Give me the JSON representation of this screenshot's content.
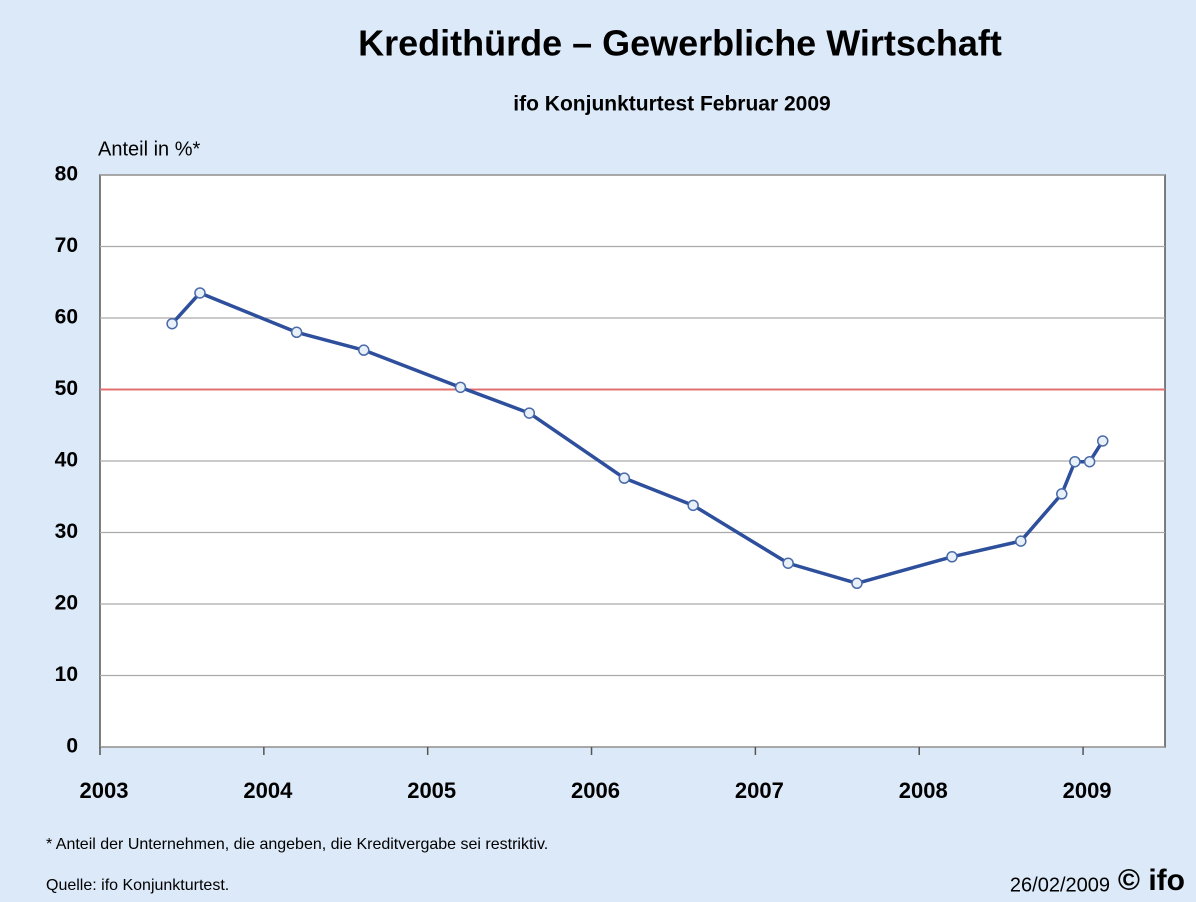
{
  "chart_data": {
    "type": "line",
    "title": "Kredithürde – Gewerbliche Wirtschaft",
    "subtitle": "ifo Konjunkturtest Februar 2009",
    "y_axis_label": "Anteil in %*",
    "x": [
      2003.44,
      2003.61,
      2004.2,
      2004.61,
      2005.2,
      2005.62,
      2006.2,
      2006.62,
      2007.2,
      2007.62,
      2008.2,
      2008.62,
      2008.87,
      2008.95,
      2009.04,
      2009.12
    ],
    "series": [
      {
        "name": "Kredithürde",
        "color": "#2e4f9c",
        "values": [
          59.2,
          63.5,
          58.0,
          55.5,
          50.3,
          46.7,
          37.6,
          33.8,
          25.7,
          22.9,
          26.6,
          28.8,
          35.4,
          39.9,
          39.9,
          42.8
        ]
      }
    ],
    "reference_line": {
      "value": 50,
      "color": "#e07070"
    },
    "xlim": [
      2003,
      2009.5
    ],
    "xticks": [
      2003,
      2004,
      2005,
      2006,
      2007,
      2008,
      2009
    ],
    "ylim": [
      0,
      80
    ],
    "yticks": [
      0,
      10,
      20,
      30,
      40,
      50,
      60,
      70,
      80
    ],
    "grid": true,
    "footnote": "* Anteil der Unternehmen, die angeben, die Kreditvergabe sei restriktiv.",
    "source": "Quelle: ifo Konjunkturtest.",
    "date": "26/02/2009",
    "logo": "© ifo"
  }
}
